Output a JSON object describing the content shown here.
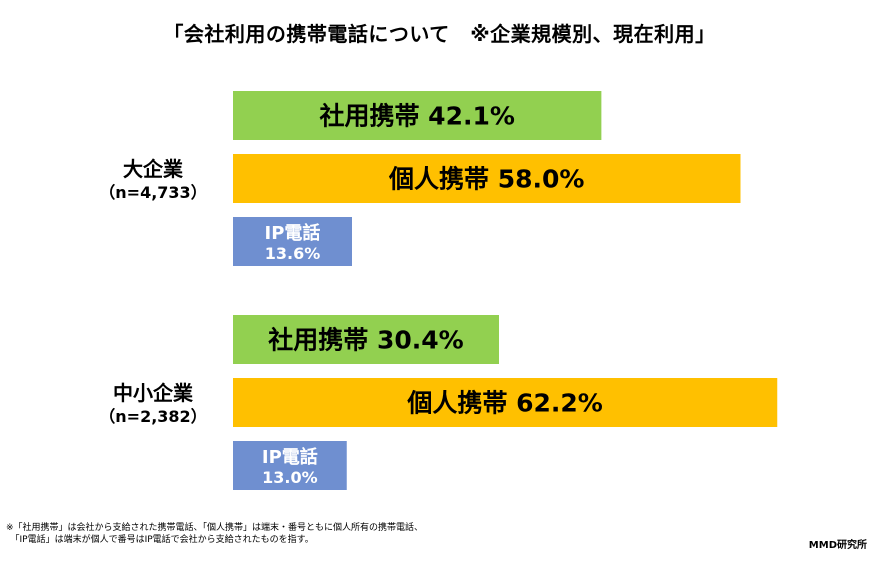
{
  "title": "「会社利用の携帯電話について　※企業規模別、現在利用」",
  "colors": {
    "社用携帯": "#92d050",
    "個人携帯": "#ffc000",
    "IP電話": "#6f8fd0"
  },
  "chart_data": {
    "type": "bar",
    "orientation": "horizontal",
    "series_names": [
      "社用携帯",
      "個人携帯",
      "IP電話"
    ],
    "groups": [
      {
        "name": "大企業",
        "n_label": "（n=4,733）",
        "bars": [
          {
            "label": "社用携帯",
            "value": 42.1,
            "text": "42.1%"
          },
          {
            "label": "個人携帯",
            "value": 58.0,
            "text": "58.0%"
          },
          {
            "label": "IP電話",
            "value": 13.6,
            "text": "13.6%"
          }
        ]
      },
      {
        "name": "中小企業",
        "n_label": "（n=2,382）",
        "bars": [
          {
            "label": "社用携帯",
            "value": 30.4,
            "text": "30.4%"
          },
          {
            "label": "個人携帯",
            "value": 62.2,
            "text": "62.2%"
          },
          {
            "label": "IP電話",
            "value": 13.0,
            "text": "13.0%"
          }
        ]
      }
    ]
  },
  "footnote": [
    "※「社用携帯」は会社から支給された携帯電話、「個人携帯」は端末・番号ともに個人所有の携帯電話、",
    "　「IP電話」は端末が個人で番号はIP電話で会社から支給されたものを指す。"
  ],
  "credit": "MMD研究所"
}
